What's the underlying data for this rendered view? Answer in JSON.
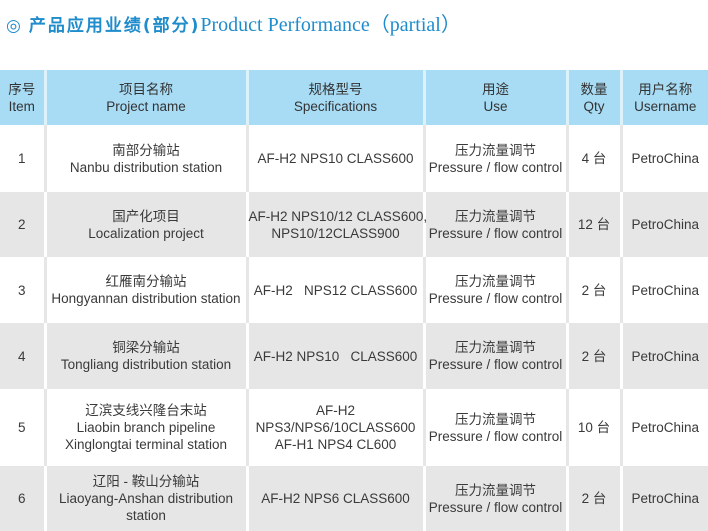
{
  "title": {
    "icon": "double-circle-icon",
    "cn": "产品应用业绩(部分)",
    "en": "Product Performance（partial）"
  },
  "colors": {
    "accent": "#1f8ccc",
    "header_bg": "#a8dcf5",
    "row_alt": "#e6e6e6"
  },
  "headers": [
    {
      "cn": "序号",
      "en": "Item"
    },
    {
      "cn": "项目名称",
      "en": "Project name"
    },
    {
      "cn": "规格型号",
      "en": "Specifications"
    },
    {
      "cn": "用途",
      "en": "Use"
    },
    {
      "cn": "数量",
      "en": "Qty"
    },
    {
      "cn": "用户名称",
      "en": "Username"
    }
  ],
  "rows": [
    {
      "item": "1",
      "project": [
        "南部分输站",
        "Nanbu distribution station"
      ],
      "spec": [
        "AF-H2 NPS10 CLASS600"
      ],
      "use": [
        "压力流量调节",
        "Pressure / flow control"
      ],
      "qty": "4 台",
      "user": "PetroChina"
    },
    {
      "item": "2",
      "project": [
        "国产化项目",
        "Localization project"
      ],
      "spec": [
        "AF-H2 NPS10/12 CLASS600,",
        "NPS10/12CLASS900"
      ],
      "use": [
        "压力流量调节",
        "Pressure / flow control"
      ],
      "qty": "12 台",
      "user": "PetroChina"
    },
    {
      "item": "3",
      "project": [
        "红雁南分输站",
        "Hongyannan distribution station"
      ],
      "spec": [
        "AF-H2   NPS12 CLASS600"
      ],
      "use": [
        "压力流量调节",
        "Pressure / flow control"
      ],
      "qty": "2 台",
      "user": "PetroChina"
    },
    {
      "item": "4",
      "project": [
        "铜梁分输站",
        "Tongliang distribution station"
      ],
      "spec": [
        "AF-H2 NPS10   CLASS600"
      ],
      "use": [
        "压力流量调节",
        "Pressure / flow control"
      ],
      "qty": "2 台",
      "user": "PetroChina"
    },
    {
      "item": "5",
      "project": [
        "辽滨支线兴隆台末站",
        "Liaobin branch pipeline",
        "Xinglongtai terminal station"
      ],
      "spec": [
        "AF-H2",
        "NPS3/NPS6/10CLASS600",
        "AF-H1 NPS4 CL600"
      ],
      "use": [
        "压力流量调节",
        "Pressure / flow control"
      ],
      "qty": "10 台",
      "user": "PetroChina"
    },
    {
      "item": "6",
      "project": [
        "辽阳 - 鞍山分输站",
        "Liaoyang-Anshan distribution station"
      ],
      "spec": [
        "AF-H2 NPS6 CLASS600"
      ],
      "use": [
        "压力流量调节",
        "Pressure / flow control"
      ],
      "qty": "2 台",
      "user": "PetroChina"
    }
  ]
}
